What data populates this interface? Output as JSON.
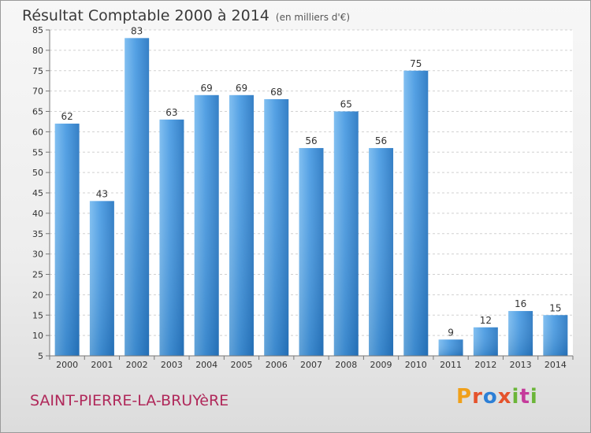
{
  "chart_data": {
    "type": "bar",
    "title": "Résultat Comptable 2000 à 2014",
    "subtitle": "(en milliers d'€)",
    "categories": [
      "2000",
      "2001",
      "2002",
      "2003",
      "2004",
      "2005",
      "2006",
      "2007",
      "2008",
      "2009",
      "2010",
      "2011",
      "2012",
      "2013",
      "2014"
    ],
    "values": [
      62,
      43,
      83,
      63,
      69,
      69,
      68,
      56,
      65,
      56,
      75,
      9,
      12,
      16,
      15
    ],
    "ylim": [
      5,
      85
    ],
    "yticks": [
      5,
      10,
      15,
      20,
      25,
      30,
      35,
      40,
      45,
      50,
      55,
      60,
      65,
      70,
      75,
      80,
      85
    ],
    "grid": true,
    "bar_color": "#3e8fd6"
  },
  "footer": {
    "commune": "SAINT-PIERRE-LA-BRUYèRE",
    "logo_letters": [
      "P",
      "r",
      "o",
      "x",
      "i",
      "t",
      "i"
    ]
  }
}
